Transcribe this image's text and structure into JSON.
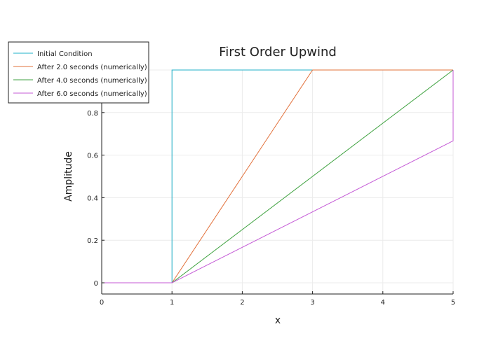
{
  "chart_data": {
    "type": "line",
    "title": "First Order Upwind",
    "xlabel": "x",
    "ylabel": "Amplitude",
    "xlim": [
      0,
      5
    ],
    "ylim": [
      -0.05,
      1.0
    ],
    "grid": true,
    "legend_position": "top-left",
    "x_ticks": [
      "0",
      "1",
      "2",
      "3",
      "4",
      "5"
    ],
    "y_ticks": [
      "0",
      "0.2",
      "0.4",
      "0.6",
      "0.8"
    ],
    "series": [
      {
        "name": "Initial Condition",
        "color": "#1fb0c8",
        "x": [
          0,
          1,
          1,
          5
        ],
        "y": [
          0,
          0,
          1,
          1
        ]
      },
      {
        "name": "After 2.0 seconds (numerically)",
        "color": "#e2703a",
        "x": [
          0,
          1,
          3,
          5
        ],
        "y": [
          0,
          0,
          1,
          1
        ]
      },
      {
        "name": "After 4.0 seconds (numerically)",
        "color": "#3fa240",
        "x": [
          0,
          1,
          5
        ],
        "y": [
          0,
          0,
          1
        ]
      },
      {
        "name": "After 6.0 seconds (numerically)",
        "color": "#c45ad6",
        "x": [
          0,
          1,
          5,
          5
        ],
        "y": [
          0,
          0,
          0.667,
          1
        ]
      }
    ]
  }
}
